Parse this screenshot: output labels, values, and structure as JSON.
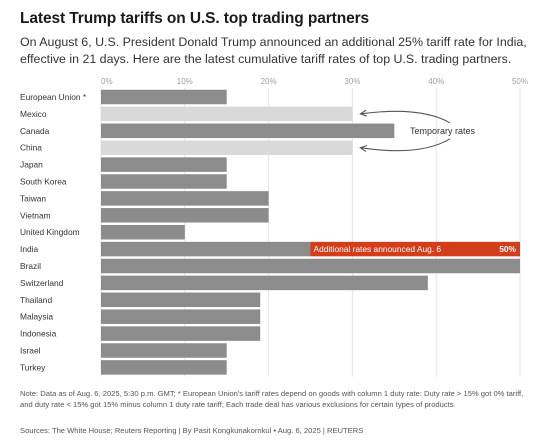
{
  "header": {
    "title": "Latest Trump tariffs on U.S. top trading partners",
    "subtitle": "On August 6, U.S. President Donald Trump announced an additional 25% tariff rate for India, effective in 21 days. Here are the latest cumulative tariff rates of top U.S. trading partners."
  },
  "chart_data": {
    "type": "bar",
    "orientation": "horizontal",
    "title": "Latest Trump tariffs on U.S. top trading partners",
    "xlim": [
      0,
      50
    ],
    "x_ticks": [
      0,
      10,
      20,
      30,
      40,
      50
    ],
    "x_tick_labels": [
      "0%",
      "10%",
      "20%",
      "30%",
      "40%",
      "50%"
    ],
    "grid": true,
    "categories": [
      "European Union *",
      "Mexico",
      "Canada",
      "China",
      "Japan",
      "South Korea",
      "Taiwan",
      "Vietnam",
      "United Kingdom",
      "India",
      "Brazil",
      "Switzerland",
      "Thailand",
      "Malaysia",
      "Indonesia",
      "Israel",
      "Turkey"
    ],
    "values": [
      15,
      30,
      35,
      30,
      15,
      15,
      20,
      20,
      10,
      50,
      50,
      39,
      19,
      19,
      19,
      15,
      15
    ],
    "temporary": [
      "Mexico",
      "China"
    ],
    "highlight": {
      "category": "India",
      "base_value": 25,
      "additional_value": 25,
      "label": "Additional rates announced Aug. 6",
      "value_label": "50%"
    },
    "annotations": [
      {
        "text": "Temporary rates",
        "targets": [
          "Mexico",
          "China"
        ]
      }
    ],
    "colors": {
      "bar": "#8c8c8c",
      "temporary": "#d9d9d9",
      "highlight": "#d43d1a",
      "grid": "#e4e4e4",
      "tick_text": "#a0a0a0",
      "arrow": "#555555"
    }
  },
  "footer": {
    "note": "Note: Data as of Aug. 6, 2025, 5:30 p.m. GMT; * European Union's tariff rates depend on goods with column 1 duty rate: Duty rate > 15% got 0% tariff, and duty rate < 15% got 15% minus column 1 duty rate tariff; Each trade deal has various exclusions for certain types of products.",
    "source": "Sources: The White House; Reuters Reporting | By Pasit Kongkunakornkul • Aug. 6, 2025 | REUTERS"
  }
}
